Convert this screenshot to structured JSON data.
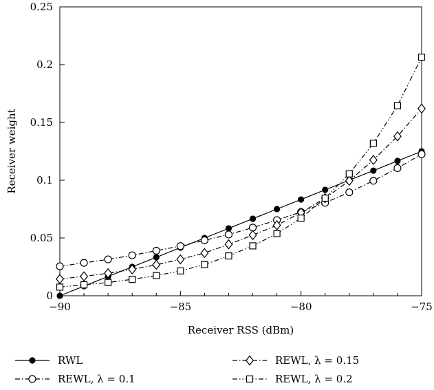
{
  "chart_data": {
    "type": "line",
    "xlabel": "Receiver RSS (dBm)",
    "ylabel": "Receiver weight",
    "xlim": [
      -90,
      -75
    ],
    "ylim": [
      0,
      0.25
    ],
    "xticks": [
      -90,
      -85,
      -80,
      -75
    ],
    "xtick_labels": [
      "−90",
      "−85",
      "−80",
      "−75"
    ],
    "yticks": [
      0,
      0.05,
      0.1,
      0.15,
      0.2,
      0.25
    ],
    "ytick_labels": [
      "0",
      "0.05",
      "0.1",
      "0.15",
      "0.2",
      "0.25"
    ],
    "grid": false,
    "legend_position": "bottom",
    "x": [
      -90,
      -89,
      -88,
      -87,
      -86,
      -85,
      -84,
      -83,
      -82,
      -81,
      -80,
      -79,
      -78,
      -77,
      -76,
      -75
    ],
    "series": [
      {
        "name": "RWL",
        "marker": "filled-circle",
        "line": "solid",
        "values": [
          0,
          0.0083,
          0.0167,
          0.025,
          0.0333,
          0.0417,
          0.05,
          0.0583,
          0.0667,
          0.075,
          0.0833,
          0.0917,
          0.1,
          0.1083,
          0.1167,
          0.125
        ]
      },
      {
        "name": "REWL, λ = 0.1",
        "marker": "open-circle",
        "line": "dash-dot",
        "values": [
          0.0255,
          0.0285,
          0.0315,
          0.035,
          0.039,
          0.043,
          0.048,
          0.053,
          0.059,
          0.0655,
          0.0725,
          0.0805,
          0.0895,
          0.0995,
          0.1105,
          0.1225
        ]
      },
      {
        "name": "REWL, λ = 0.15",
        "marker": "open-diamond",
        "line": "dash-dot",
        "values": [
          0.0145,
          0.0168,
          0.0195,
          0.0228,
          0.0268,
          0.0315,
          0.037,
          0.0445,
          0.0525,
          0.061,
          0.072,
          0.0845,
          0.0995,
          0.1175,
          0.138,
          0.162
        ]
      },
      {
        "name": "REWL, λ = 0.2",
        "marker": "open-square",
        "line": "dash-dot-dot",
        "values": [
          0.0075,
          0.0095,
          0.0115,
          0.0142,
          0.0175,
          0.0215,
          0.027,
          0.0345,
          0.0432,
          0.0538,
          0.0672,
          0.0845,
          0.1055,
          0.132,
          0.1645,
          0.2065
        ]
      }
    ]
  }
}
